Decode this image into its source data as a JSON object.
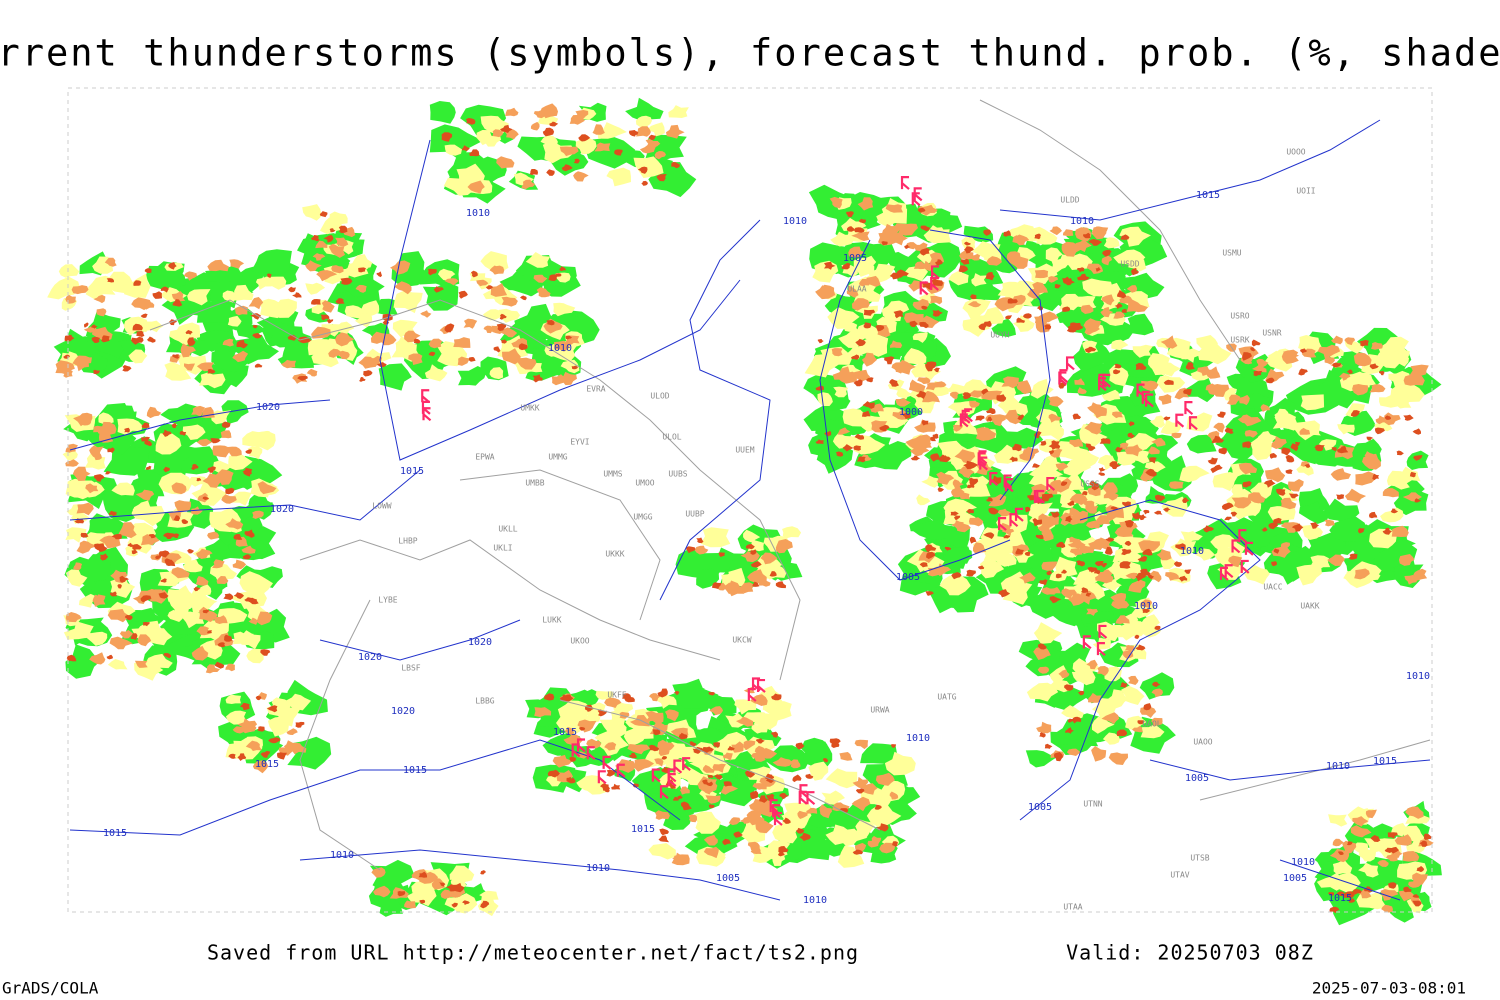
{
  "title": "Current thunderstorms (symbols), forecast thund. prob. (%, shaded)",
  "footer": {
    "saved": "Saved from URL http://meteocenter.net/fact/ts2.png",
    "valid": "Valid: 20250703 08Z",
    "software": "GrADS/COLA",
    "timestamp": "2025-07-03-08:01"
  },
  "isobar_labels": [
    "1010",
    "1010",
    "1020",
    "1015",
    "1020",
    "1010",
    "1005",
    "1000",
    "1005",
    "1010",
    "1015",
    "1010",
    "1010",
    "1020",
    "1020",
    "1020",
    "1015",
    "1015",
    "1015",
    "1015",
    "1010",
    "1015",
    "1010",
    "1005",
    "1010",
    "1010",
    "1005",
    "1005",
    "1010",
    "1015",
    "1010",
    "1010",
    "1005",
    "1015"
  ],
  "station_labels": [
    "ULDD",
    "USDD",
    "USMU",
    "UUYH",
    "ULAA",
    "EVRA",
    "ULOD",
    "UMKK",
    "ULOL",
    "EYVI",
    "UUEM",
    "EPWA",
    "UMMG",
    "UMMS",
    "UMOO",
    "UUBS",
    "UMBB",
    "LOWW",
    "UKLL",
    "UKLI",
    "LHBP",
    "UMGG",
    "UUBP",
    "UKKK",
    "LYBE",
    "LUKK",
    "UKOO",
    "UKCW",
    "LBSF",
    "LBBG",
    "UKFF",
    "URWA",
    "UATG",
    "UAOL",
    "UAOO",
    "UTNN",
    "UTSB",
    "UTAV",
    "UTAA",
    "UAKK",
    "UACC",
    "USSS",
    "USRO",
    "USRK",
    "USNR",
    "UOOO",
    "UOII"
  ]
}
